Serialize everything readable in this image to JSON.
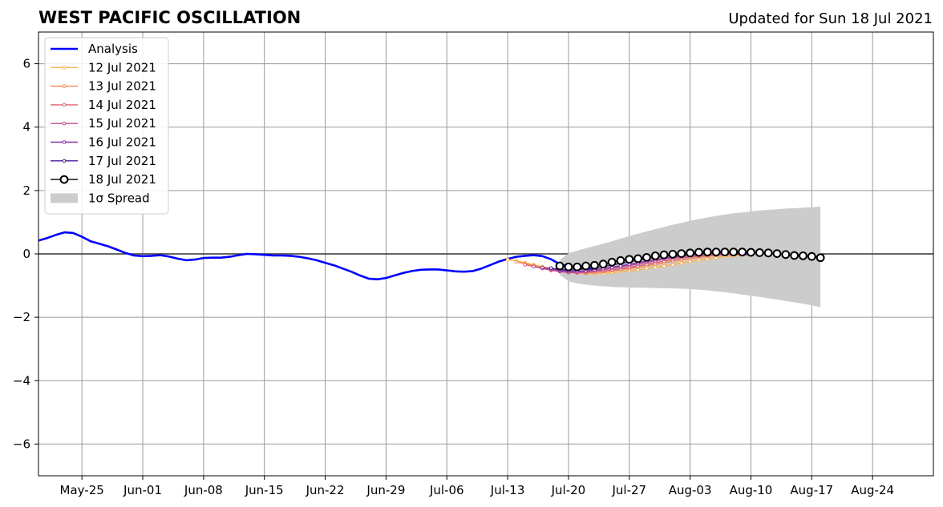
{
  "header": {
    "title": "WEST PACIFIC OSCILLATION",
    "updated": "Updated for Sun 18 Jul 2021"
  },
  "chart_data": {
    "type": "line",
    "title": "WEST PACIFIC OSCILLATION",
    "subtitle": "Updated for Sun 18 Jul 2021",
    "xlabel": "",
    "ylabel": "",
    "xlim": [
      "2021-05-20",
      "2021-08-31"
    ],
    "ylim": [
      -7,
      7
    ],
    "grid": true,
    "legend_position": "top-left",
    "xticks": [
      {
        "date": "2021-05-25",
        "label": "May-25"
      },
      {
        "date": "2021-06-01",
        "label": "Jun-01"
      },
      {
        "date": "2021-06-08",
        "label": "Jun-08"
      },
      {
        "date": "2021-06-15",
        "label": "Jun-15"
      },
      {
        "date": "2021-06-22",
        "label": "Jun-22"
      },
      {
        "date": "2021-06-29",
        "label": "Jun-29"
      },
      {
        "date": "2021-07-06",
        "label": "Jul-06"
      },
      {
        "date": "2021-07-13",
        "label": "Jul-13"
      },
      {
        "date": "2021-07-20",
        "label": "Jul-20"
      },
      {
        "date": "2021-07-27",
        "label": "Jul-27"
      },
      {
        "date": "2021-08-03",
        "label": "Aug-03"
      },
      {
        "date": "2021-08-10",
        "label": "Aug-10"
      },
      {
        "date": "2021-08-17",
        "label": "Aug-17"
      },
      {
        "date": "2021-08-24",
        "label": "Aug-24"
      }
    ],
    "yticks": [
      {
        "value": 6,
        "label": "6"
      },
      {
        "value": 4,
        "label": "4"
      },
      {
        "value": 2,
        "label": "2"
      },
      {
        "value": 0,
        "label": "0"
      },
      {
        "value": -2,
        "label": "−2"
      },
      {
        "value": -4,
        "label": "−4"
      },
      {
        "value": -6,
        "label": "−6"
      }
    ],
    "analysis": {
      "name": "Analysis",
      "color": "#0000ff",
      "start_date": "2021-05-20",
      "values": [
        0.42,
        0.5,
        0.6,
        0.68,
        0.66,
        0.54,
        0.4,
        0.32,
        0.24,
        0.14,
        0.03,
        -0.05,
        -0.07,
        -0.06,
        -0.04,
        -0.08,
        -0.15,
        -0.2,
        -0.18,
        -0.13,
        -0.12,
        -0.12,
        -0.09,
        -0.04,
        0.0,
        -0.01,
        -0.03,
        -0.05,
        -0.05,
        -0.06,
        -0.09,
        -0.14,
        -0.2,
        -0.28,
        -0.36,
        -0.46,
        -0.56,
        -0.68,
        -0.78,
        -0.8,
        -0.76,
        -0.68,
        -0.6,
        -0.54,
        -0.5,
        -0.49,
        -0.49,
        -0.52,
        -0.55,
        -0.56,
        -0.54,
        -0.46,
        -0.35,
        -0.24,
        -0.16,
        -0.09,
        -0.06,
        -0.04,
        -0.07,
        -0.17,
        -0.32,
        -0.4,
        -0.44,
        -0.45,
        -0.47
      ]
    },
    "forecasts": [
      {
        "name": "12 Jul 2021",
        "color": "#fdb34d",
        "start_date": "2021-07-13",
        "values": [
          -0.18,
          -0.22,
          -0.28,
          -0.34,
          -0.4,
          -0.46,
          -0.52,
          -0.57,
          -0.6,
          -0.62,
          -0.62,
          -0.61,
          -0.59,
          -0.56,
          -0.53,
          -0.5,
          -0.46,
          -0.42,
          -0.38,
          -0.34,
          -0.29,
          -0.24,
          -0.2,
          -0.16,
          -0.12,
          -0.09,
          -0.06,
          -0.04,
          -0.03,
          -0.02
        ]
      },
      {
        "name": "13 Jul 2021",
        "color": "#f28a4d",
        "start_date": "2021-07-14",
        "values": [
          -0.25,
          -0.31,
          -0.37,
          -0.43,
          -0.49,
          -0.54,
          -0.58,
          -0.6,
          -0.6,
          -0.58,
          -0.56,
          -0.53,
          -0.5,
          -0.46,
          -0.42,
          -0.38,
          -0.33,
          -0.28,
          -0.23,
          -0.19,
          -0.15,
          -0.11,
          -0.08,
          -0.05,
          -0.03,
          -0.02,
          -0.01,
          -0.01
        ]
      },
      {
        "name": "14 Jul 2021",
        "color": "#e06070",
        "start_date": "2021-07-15",
        "values": [
          -0.34,
          -0.4,
          -0.46,
          -0.52,
          -0.56,
          -0.59,
          -0.6,
          -0.59,
          -0.57,
          -0.54,
          -0.51,
          -0.47,
          -0.43,
          -0.38,
          -0.33,
          -0.28,
          -0.23,
          -0.18,
          -0.14,
          -0.1,
          -0.07,
          -0.05,
          -0.03,
          -0.02,
          -0.02,
          -0.02,
          -0.03
        ]
      },
      {
        "name": "15 Jul 2021",
        "color": "#c04b94",
        "start_date": "2021-07-16",
        "values": [
          -0.4,
          -0.45,
          -0.5,
          -0.55,
          -0.58,
          -0.58,
          -0.56,
          -0.53,
          -0.5,
          -0.46,
          -0.42,
          -0.37,
          -0.32,
          -0.27,
          -0.22,
          -0.17,
          -0.13,
          -0.09,
          -0.06,
          -0.04,
          -0.02,
          -0.01,
          -0.01,
          -0.01,
          -0.02,
          -0.03
        ]
      },
      {
        "name": "16 Jul 2021",
        "color": "#8a2fa8",
        "start_date": "2021-07-17",
        "values": [
          -0.43,
          -0.47,
          -0.52,
          -0.55,
          -0.55,
          -0.53,
          -0.5,
          -0.46,
          -0.42,
          -0.38,
          -0.33,
          -0.28,
          -0.23,
          -0.18,
          -0.13,
          -0.09,
          -0.06,
          -0.03,
          -0.01,
          0.0,
          0.01,
          0.01,
          0.0,
          -0.01,
          -0.02
        ]
      },
      {
        "name": "17 Jul 2021",
        "color": "#4a1a96",
        "start_date": "2021-07-18",
        "values": [
          -0.45,
          -0.49,
          -0.51,
          -0.5,
          -0.47,
          -0.44,
          -0.4,
          -0.35,
          -0.3,
          -0.25,
          -0.2,
          -0.15,
          -0.11,
          -0.07,
          -0.04,
          -0.02,
          0.0,
          0.02,
          0.03,
          0.04,
          0.04,
          0.03,
          0.02,
          0.01
        ]
      }
    ],
    "latest": {
      "name": "18 Jul 2021",
      "color": "#000000",
      "marker_fill": "#ffffff",
      "start_date": "2021-07-19",
      "values": [
        -0.38,
        -0.41,
        -0.41,
        -0.38,
        -0.36,
        -0.32,
        -0.26,
        -0.21,
        -0.17,
        -0.15,
        -0.11,
        -0.06,
        -0.03,
        -0.01,
        0.01,
        0.03,
        0.05,
        0.06,
        0.06,
        0.06,
        0.06,
        0.06,
        0.05,
        0.04,
        0.03,
        0.01,
        -0.02,
        -0.05,
        -0.06,
        -0.08,
        -0.12
      ]
    },
    "spread": {
      "name": "1σ Spread",
      "color": "#cccccc",
      "start_date": "2021-07-19",
      "upper": [
        -0.2,
        0.02,
        0.1,
        0.18,
        0.25,
        0.32,
        0.4,
        0.48,
        0.56,
        0.64,
        0.71,
        0.78,
        0.85,
        0.92,
        0.98,
        1.04,
        1.1,
        1.15,
        1.2,
        1.24,
        1.28,
        1.31,
        1.34,
        1.37,
        1.39,
        1.41,
        1.43,
        1.44,
        1.46,
        1.47,
        1.49
      ],
      "lower": [
        -0.66,
        -0.86,
        -0.93,
        -0.97,
        -1.0,
        -1.02,
        -1.04,
        -1.05,
        -1.06,
        -1.07,
        -1.07,
        -1.08,
        -1.08,
        -1.09,
        -1.1,
        -1.11,
        -1.13,
        -1.15,
        -1.18,
        -1.21,
        -1.24,
        -1.28,
        -1.32,
        -1.36,
        -1.4,
        -1.44,
        -1.48,
        -1.53,
        -1.57,
        -1.62,
        -1.68
      ]
    }
  }
}
